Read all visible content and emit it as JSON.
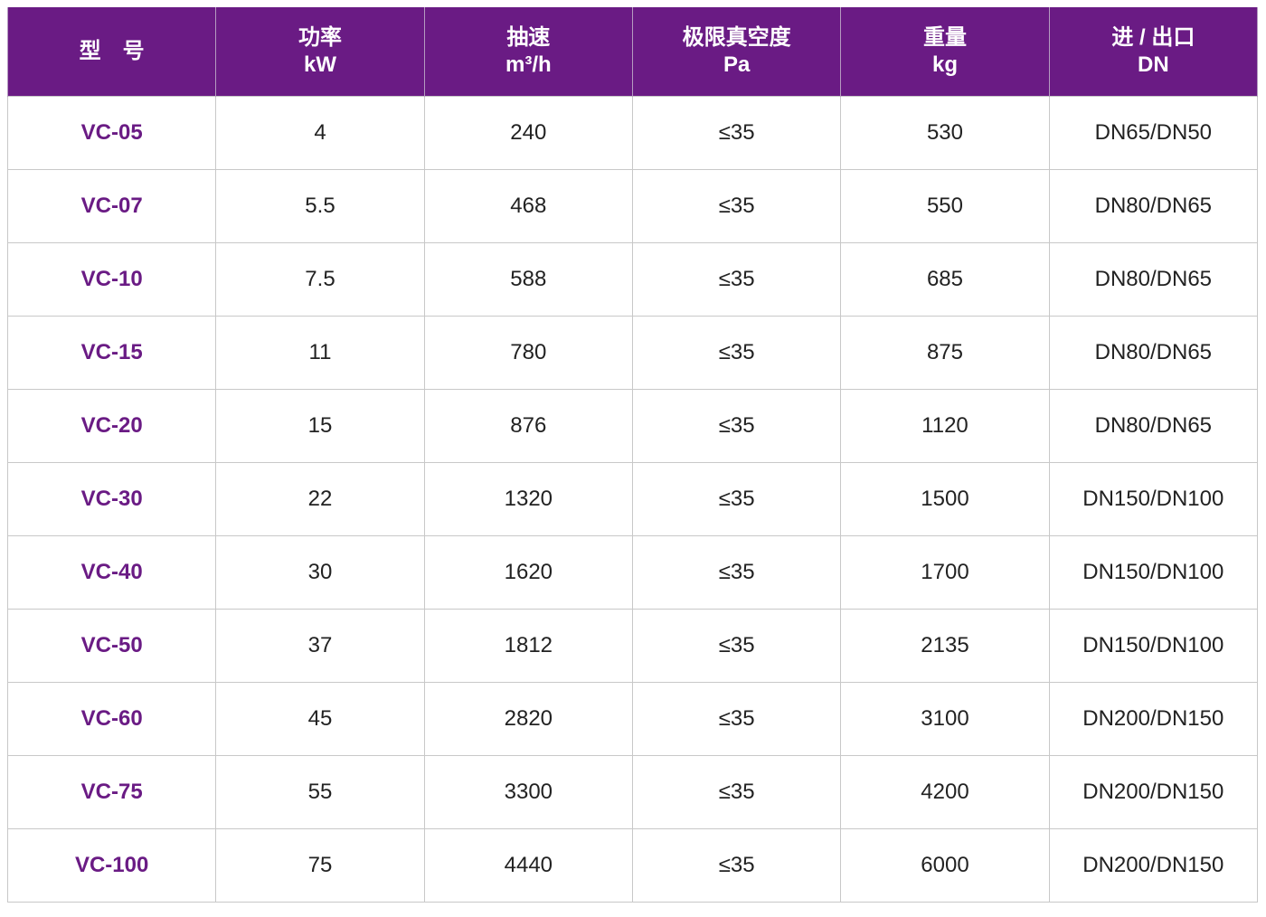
{
  "table": {
    "header": [
      [
        "型　号"
      ],
      [
        "功率",
        "kW"
      ],
      [
        "抽速",
        "m³/h"
      ],
      [
        "极限真空度",
        "Pa"
      ],
      [
        "重量",
        "kg"
      ],
      [
        "进 / 出口",
        "DN"
      ]
    ],
    "rows": [
      [
        "VC-05",
        "4",
        "240",
        "≤35",
        "530",
        "DN65/DN50"
      ],
      [
        "VC-07",
        "5.5",
        "468",
        "≤35",
        "550",
        "DN80/DN65"
      ],
      [
        "VC-10",
        "7.5",
        "588",
        "≤35",
        "685",
        "DN80/DN65"
      ],
      [
        "VC-15",
        "11",
        "780",
        "≤35",
        "875",
        "DN80/DN65"
      ],
      [
        "VC-20",
        "15",
        "876",
        "≤35",
        "1120",
        "DN80/DN65"
      ],
      [
        "VC-30",
        "22",
        "1320",
        "≤35",
        "1500",
        "DN150/DN100"
      ],
      [
        "VC-40",
        "30",
        "1620",
        "≤35",
        "1700",
        "DN150/DN100"
      ],
      [
        "VC-50",
        "37",
        "1812",
        "≤35",
        "2135",
        "DN150/DN100"
      ],
      [
        "VC-60",
        "45",
        "2820",
        "≤35",
        "3100",
        "DN200/DN150"
      ],
      [
        "VC-75",
        "55",
        "3300",
        "≤35",
        "4200",
        "DN200/DN150"
      ],
      [
        "VC-100",
        "75",
        "4440",
        "≤35",
        "6000",
        "DN200/DN150"
      ]
    ]
  }
}
